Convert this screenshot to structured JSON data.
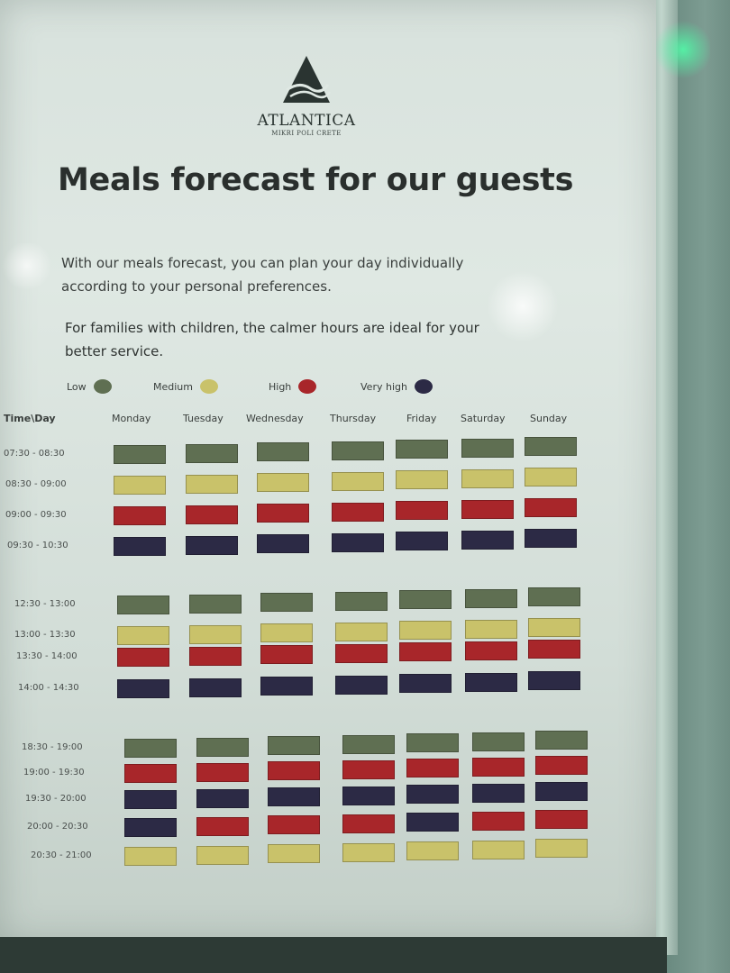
{
  "brand": {
    "name": "ATLANTICA",
    "subtitle": "MIKRI POLI CRETE"
  },
  "title": "Meals forecast for our guests",
  "intro": {
    "line1": "With our meals forecast, you can plan your day individually",
    "line2": "according to your personal preferences.",
    "line3": "For families with children, the calmer hours are ideal for your",
    "line4": "better service."
  },
  "legend": [
    {
      "key": "low",
      "label": "Low",
      "color": "#5f6f52"
    },
    {
      "key": "med",
      "label": "Medium",
      "color": "#c9c26a"
    },
    {
      "key": "high",
      "label": "High",
      "color": "#a8262a"
    },
    {
      "key": "vhigh",
      "label": "Very high",
      "color": "#2c2a45"
    }
  ],
  "table": {
    "corner": "Time\\Day",
    "days": [
      "Monday",
      "Tuesday",
      "Wednesday",
      "Thursday",
      "Friday",
      "Saturday",
      "Sunday"
    ],
    "sections": [
      {
        "rows": [
          {
            "time": "07:30 - 08:30",
            "levels": [
              "low",
              "low",
              "low",
              "low",
              "low",
              "low",
              "low"
            ]
          },
          {
            "time": "08:30 - 09:00",
            "levels": [
              "med",
              "med",
              "med",
              "med",
              "med",
              "med",
              "med"
            ]
          },
          {
            "time": "09:00 - 09:30",
            "levels": [
              "high",
              "high",
              "high",
              "high",
              "high",
              "high",
              "high"
            ]
          },
          {
            "time": "09:30 - 10:30",
            "levels": [
              "vhigh",
              "vhigh",
              "vhigh",
              "vhigh",
              "vhigh",
              "vhigh",
              "vhigh"
            ]
          }
        ]
      },
      {
        "rows": [
          {
            "time": "12:30 - 13:00",
            "levels": [
              "low",
              "low",
              "low",
              "low",
              "low",
              "low",
              "low"
            ]
          },
          {
            "time": "13:00 - 13:30",
            "levels": [
              "med",
              "med",
              "med",
              "med",
              "med",
              "med",
              "med"
            ]
          },
          {
            "time": "13:30 - 14:00",
            "levels": [
              "high",
              "high",
              "high",
              "high",
              "high",
              "high",
              "high"
            ]
          },
          {
            "time": "14:00 - 14:30",
            "levels": [
              "vhigh",
              "vhigh",
              "vhigh",
              "vhigh",
              "vhigh",
              "vhigh",
              "vhigh"
            ]
          }
        ]
      },
      {
        "rows": [
          {
            "time": "18:30 - 19:00",
            "levels": [
              "low",
              "low",
              "low",
              "low",
              "low",
              "low",
              "low"
            ]
          },
          {
            "time": "19:00 - 19:30",
            "levels": [
              "high",
              "high",
              "high",
              "high",
              "high",
              "high",
              "high"
            ]
          },
          {
            "time": "19:30 - 20:00",
            "levels": [
              "vhigh",
              "vhigh",
              "vhigh",
              "vhigh",
              "vhigh",
              "vhigh",
              "vhigh"
            ]
          },
          {
            "time": "20:00 - 20:30",
            "levels": [
              "vhigh",
              "high",
              "high",
              "high",
              "vhigh",
              "high",
              "high"
            ]
          },
          {
            "time": "20:30 - 21:00",
            "levels": [
              "med",
              "med",
              "med",
              "med",
              "med",
              "med",
              "med"
            ]
          }
        ]
      }
    ]
  }
}
